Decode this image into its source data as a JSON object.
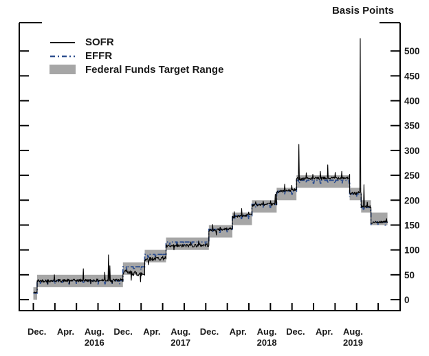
{
  "title": "Basis Points",
  "colors": {
    "sofr_line": "#000000",
    "effr_line": "#2e4f8f",
    "target_range_band": "#a6a6a6",
    "axis": "#000000",
    "text": "#1a1a1a"
  },
  "chart_data": {
    "type": "line",
    "title": "Basis Points",
    "unit": "basis points",
    "ylim": [
      0,
      557
    ],
    "y_ticks": [
      0,
      50,
      100,
      150,
      200,
      250,
      300,
      350,
      400,
      450,
      500
    ],
    "grid": false,
    "legend_position": "top-left-inside",
    "x_range_note": "Dec 2015 through early Jan 2020, months indexed from Dec 1 2015 = 0",
    "quarter_tick_months": [
      0,
      3,
      6,
      9,
      12,
      15,
      18,
      21,
      24,
      27,
      30,
      33,
      36,
      39,
      42,
      45,
      48
    ],
    "month_labels": [
      {
        "label": "Dec.",
        "m": 0.5
      },
      {
        "label": "Apr.",
        "m": 4.5
      },
      {
        "label": "Aug.",
        "m": 8.5
      },
      {
        "label": "Dec.",
        "m": 12.5
      },
      {
        "label": "Apr.",
        "m": 16.5
      },
      {
        "label": "Aug.",
        "m": 20.5
      },
      {
        "label": "Dec.",
        "m": 24.5
      },
      {
        "label": "Apr.",
        "m": 28.5
      },
      {
        "label": "Aug.",
        "m": 32.5
      },
      {
        "label": "Dec.",
        "m": 36.5
      },
      {
        "label": "Apr.",
        "m": 40.5
      },
      {
        "label": "Aug.",
        "m": 44.5
      }
    ],
    "year_labels": [
      {
        "label": "2016",
        "m": 8.5
      },
      {
        "label": "2017",
        "m": 20.5
      },
      {
        "label": "2018",
        "m": 32.5
      },
      {
        "label": "2019",
        "m": 44.5
      }
    ],
    "series": [
      {
        "name": "SOFR",
        "style": "solid",
        "color": "#000000"
      },
      {
        "name": "EFFR",
        "style": "dash-dot",
        "color": "#2e4f8f"
      },
      {
        "name": "Federal Funds Target Range",
        "style": "band",
        "color": "#a6a6a6"
      }
    ],
    "target_range_segments": [
      {
        "from": "2015-12-01",
        "to": "2015-12-16",
        "m0": 0,
        "m1": 0.53,
        "low": 0,
        "high": 25,
        "effr": 13,
        "sofr_base": [
          14,
          15
        ],
        "sofr_noise": 1.5
      },
      {
        "from": "2015-12-17",
        "to": "2016-12-14",
        "m0": 0.53,
        "m1": 12.47,
        "low": 25,
        "high": 50,
        "effr": 38,
        "sofr_base": [
          38,
          39
        ],
        "sofr_noise": 3
      },
      {
        "from": "2016-12-15",
        "to": "2017-03-15",
        "m0": 12.47,
        "m1": 15.5,
        "low": 50,
        "high": 75,
        "effr": 66,
        "sofr_base": [
          55,
          51
        ],
        "sofr_noise": 5
      },
      {
        "from": "2017-03-16",
        "to": "2017-06-14",
        "m0": 15.5,
        "m1": 18.47,
        "low": 75,
        "high": 100,
        "effr": 91,
        "sofr_base": [
          81,
          84
        ],
        "sofr_noise": 4
      },
      {
        "from": "2017-06-15",
        "to": "2017-12-13",
        "m0": 18.47,
        "m1": 24.43,
        "low": 100,
        "high": 125,
        "effr": 116,
        "sofr_base": [
          107,
          110
        ],
        "sofr_noise": 3.5
      },
      {
        "from": "2017-12-14",
        "to": "2018-03-21",
        "m0": 24.43,
        "m1": 27.7,
        "low": 125,
        "high": 150,
        "effr": 141.5,
        "sofr_base": [
          139,
          143
        ],
        "sofr_noise": 2.5
      },
      {
        "from": "2018-03-22",
        "to": "2018-06-13",
        "m0": 27.7,
        "m1": 30.43,
        "low": 150,
        "high": 175,
        "effr": 169,
        "sofr_base": [
          166,
          171
        ],
        "sofr_noise": 2.5
      },
      {
        "from": "2018-06-14",
        "to": "2018-09-26",
        "m0": 30.43,
        "m1": 33.87,
        "low": 175,
        "high": 200,
        "effr": 191.5,
        "sofr_base": [
          190,
          192
        ],
        "sofr_noise": 2.5
      },
      {
        "from": "2018-09-27",
        "to": "2018-12-19",
        "m0": 33.87,
        "m1": 36.63,
        "low": 200,
        "high": 225,
        "effr": 218,
        "sofr_base": [
          217,
          221
        ],
        "sofr_noise": 2.5
      },
      {
        "from": "2018-12-20",
        "to": "2019-07-31",
        "m0": 36.63,
        "m1": 44.03,
        "low": 225,
        "high": 250,
        "effr": 240,
        "sofr_base": [
          243,
          245
        ],
        "sofr_noise": 3
      },
      {
        "from": "2019-08-01",
        "to": "2019-09-18",
        "m0": 44.03,
        "m1": 45.63,
        "low": 200,
        "high": 225,
        "effr": 212.5,
        "sofr_base": [
          213,
          215
        ],
        "sofr_noise": 3
      },
      {
        "from": "2019-09-19",
        "to": "2019-10-30",
        "m0": 45.63,
        "m1": 47.0,
        "low": 175,
        "high": 200,
        "effr": 185.5,
        "sofr_base": [
          187,
          186
        ],
        "sofr_noise": 3
      },
      {
        "from": "2019-10-31",
        "to": "2020-01-10",
        "m0": 47.0,
        "m1": 49.3,
        "low": 150,
        "high": 175,
        "effr": 156,
        "sofr_base": [
          155,
          157
        ],
        "sofr_noise": 2
      }
    ],
    "sofr_spikes": [
      {
        "date": "2016-02-29",
        "m": 2.93,
        "bp": 50
      },
      {
        "date": "2016-06-30",
        "m": 6.97,
        "bp": 62
      },
      {
        "date": "2016-09-30",
        "m": 9.97,
        "bp": 55
      },
      {
        "date": "2016-10-14",
        "m": 10.43,
        "bp": 90
      },
      {
        "date": "2016-10-20",
        "m": 10.63,
        "bp": 68
      },
      {
        "date": "2016-12-30",
        "m": 12.97,
        "bp": 60
      },
      {
        "date": "2017-06-30",
        "m": 18.97,
        "bp": 108
      },
      {
        "date": "2017-07-31",
        "m": 20.0,
        "bp": 113
      },
      {
        "date": "2017-09-29",
        "m": 21.93,
        "bp": 116
      },
      {
        "date": "2017-10-31",
        "m": 23.0,
        "bp": 118
      },
      {
        "date": "2017-12-29",
        "m": 24.93,
        "bp": 151
      },
      {
        "date": "2018-01-31",
        "m": 26.0,
        "bp": 146
      },
      {
        "date": "2018-03-29",
        "m": 27.93,
        "bp": 177
      },
      {
        "date": "2018-04-30",
        "m": 29.0,
        "bp": 183
      },
      {
        "date": "2018-05-31",
        "m": 30.0,
        "bp": 176
      },
      {
        "date": "2018-06-29",
        "m": 30.93,
        "bp": 197
      },
      {
        "date": "2018-07-31",
        "m": 32.0,
        "bp": 198
      },
      {
        "date": "2018-08-31",
        "m": 33.0,
        "bp": 199
      },
      {
        "date": "2018-09-21",
        "m": 33.7,
        "bp": 212
      },
      {
        "date": "2018-10-31",
        "m": 35.0,
        "bp": 232
      },
      {
        "date": "2018-11-30",
        "m": 36.0,
        "bp": 230
      },
      {
        "date": "2018-12-31",
        "m": 36.97,
        "bp": 312
      },
      {
        "date": "2019-01-31",
        "m": 38.0,
        "bp": 255
      },
      {
        "date": "2019-02-28",
        "m": 38.93,
        "bp": 252
      },
      {
        "date": "2019-03-29",
        "m": 39.93,
        "bp": 258
      },
      {
        "date": "2019-04-30",
        "m": 41.0,
        "bp": 271
      },
      {
        "date": "2019-05-31",
        "m": 42.0,
        "bp": 256
      },
      {
        "date": "2019-06-28",
        "m": 42.93,
        "bp": 258
      },
      {
        "date": "2019-07-31",
        "m": 44.0,
        "bp": 252
      },
      {
        "date": "2019-09-17",
        "m": 45.53,
        "bp": 525
      },
      {
        "date": "2019-10-01",
        "m": 46.0,
        "bp": 231
      },
      {
        "date": "2019-10-16",
        "m": 46.5,
        "bp": 196
      },
      {
        "date": "2020-01-08",
        "m": 49.2,
        "bp": 163
      }
    ],
    "sofr_dips": [
      {
        "m": 2.0,
        "bp": 31
      },
      {
        "m": 5.0,
        "bp": 31
      },
      {
        "m": 7.97,
        "bp": 32
      },
      {
        "m": 11.0,
        "bp": 33
      },
      {
        "m": 13.6,
        "bp": 39
      },
      {
        "m": 14.9,
        "bp": 36
      },
      {
        "m": 16.03,
        "bp": 70
      },
      {
        "m": 19.6,
        "bp": 100
      },
      {
        "m": 25.5,
        "bp": 130
      }
    ],
    "effr_month_end_dip_bp": 6
  }
}
